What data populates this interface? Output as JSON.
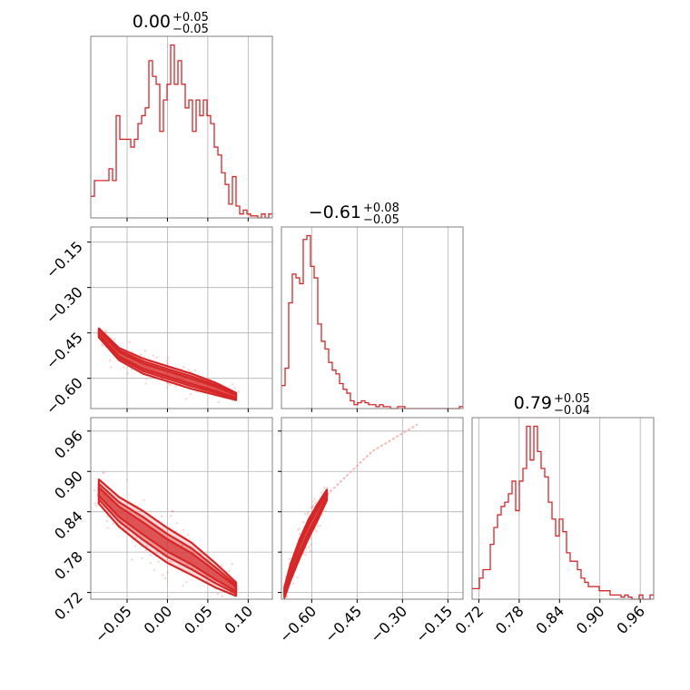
{
  "chart_data": {
    "type": "corner",
    "color": "#d62728",
    "parameters": [
      {
        "title": "0.00",
        "title_plus": "+0.05",
        "title_minus": "−0.05",
        "range": [
          -0.095,
          0.13
        ],
        "ticks": [
          -0.05,
          0.0,
          0.05,
          0.1
        ],
        "tick_labels": [
          "−0.05",
          "0.00",
          "0.05",
          "0.10"
        ],
        "hist": {
          "x0": -0.095,
          "dx": 0.0045,
          "counts": [
            0.11,
            0.19,
            0.19,
            0.19,
            0.19,
            0.25,
            0.19,
            0.52,
            0.4,
            0.4,
            0.4,
            0.36,
            0.4,
            0.48,
            0.52,
            0.56,
            0.8,
            0.72,
            0.68,
            0.44,
            0.6,
            0.68,
            0.88,
            0.68,
            0.8,
            0.68,
            0.56,
            0.6,
            0.44,
            0.6,
            0.52,
            0.6,
            0.52,
            0.48,
            0.36,
            0.32,
            0.23,
            0.17,
            0.07,
            0.21,
            0.06,
            0.02,
            0.04,
            0.02,
            0.01,
            0.01,
            0.0,
            0.02,
            0.0,
            0.02
          ]
        }
      },
      {
        "title": "−0.61",
        "title_plus": "+0.08",
        "title_minus": "−0.05",
        "range": [
          -0.7,
          -0.1
        ],
        "ticks": [
          -0.6,
          -0.45,
          -0.3,
          -0.15
        ],
        "tick_labels": [
          "−0.60",
          "−0.45",
          "−0.30",
          "−0.15"
        ],
        "hist": {
          "x0": -0.7,
          "dx": 0.012,
          "counts": [
            0.12,
            0.21,
            0.55,
            0.7,
            0.68,
            0.65,
            0.88,
            0.9,
            0.74,
            0.68,
            0.44,
            0.35,
            0.31,
            0.24,
            0.2,
            0.18,
            0.13,
            0.1,
            0.08,
            0.04,
            0.02,
            0.03,
            0.04,
            0.03,
            0.02,
            0.02,
            0.01,
            0.02,
            0.01,
            0.01,
            0.0,
            0.0,
            0.01,
            0.01,
            0.0,
            0.0,
            0.0,
            0.0,
            0.0,
            0.0,
            0.0,
            0.0,
            0.0,
            0.0,
            0.0,
            0.0,
            0.0,
            0.0,
            0.0,
            0.01
          ]
        }
      },
      {
        "title": "0.79",
        "title_plus": "+0.05",
        "title_minus": "−0.04",
        "range": [
          0.71,
          0.98
        ],
        "ticks": [
          0.72,
          0.78,
          0.84,
          0.9,
          0.96
        ],
        "tick_labels": [
          "0.72",
          "0.78",
          "0.84",
          "0.90",
          "0.96"
        ],
        "hist": {
          "x0": 0.71,
          "dx": 0.0054,
          "counts": [
            0.05,
            0.05,
            0.1,
            0.14,
            0.14,
            0.26,
            0.34,
            0.4,
            0.44,
            0.46,
            0.5,
            0.56,
            0.42,
            0.56,
            0.62,
            0.82,
            0.66,
            0.82,
            0.7,
            0.62,
            0.58,
            0.46,
            0.38,
            0.3,
            0.38,
            0.32,
            0.22,
            0.18,
            0.18,
            0.14,
            0.1,
            0.08,
            0.06,
            0.06,
            0.06,
            0.04,
            0.04,
            0.04,
            0.02,
            0.02,
            0.02,
            0.01,
            0.02,
            0.01,
            0.0,
            0.0,
            0.02,
            0.0,
            0.0,
            0.02
          ]
        }
      }
    ],
    "joint_2d": [
      {
        "x_param": 0,
        "y_param": 1,
        "ridge": [
          [
            -0.085,
            -0.45
          ],
          [
            -0.06,
            -0.52
          ],
          [
            -0.03,
            -0.56
          ],
          [
            0.0,
            -0.585
          ],
          [
            0.03,
            -0.61
          ],
          [
            0.06,
            -0.635
          ],
          [
            0.085,
            -0.66
          ]
        ],
        "width": [
          0.015,
          0.02,
          0.025,
          0.025,
          0.025,
          0.02,
          0.012
        ]
      },
      {
        "x_param": 0,
        "y_param": 2,
        "ridge": [
          [
            -0.085,
            0.87
          ],
          [
            -0.06,
            0.84
          ],
          [
            -0.03,
            0.815
          ],
          [
            0.0,
            0.79
          ],
          [
            0.03,
            0.77
          ],
          [
            0.06,
            0.745
          ],
          [
            0.085,
            0.725
          ]
        ],
        "width": [
          0.018,
          0.022,
          0.026,
          0.026,
          0.024,
          0.018,
          0.01
        ]
      },
      {
        "x_param": 1,
        "y_param": 2,
        "ridge": [
          [
            -0.69,
            0.72
          ],
          [
            -0.67,
            0.75
          ],
          [
            -0.64,
            0.785
          ],
          [
            -0.61,
            0.815
          ],
          [
            -0.58,
            0.84
          ],
          [
            -0.55,
            0.865
          ]
        ],
        "width": [
          0.008,
          0.012,
          0.014,
          0.014,
          0.012,
          0.008
        ],
        "tail": [
          [
            -0.55,
            0.865
          ],
          [
            -0.4,
            0.93
          ],
          [
            -0.25,
            0.97
          ]
        ]
      }
    ]
  }
}
